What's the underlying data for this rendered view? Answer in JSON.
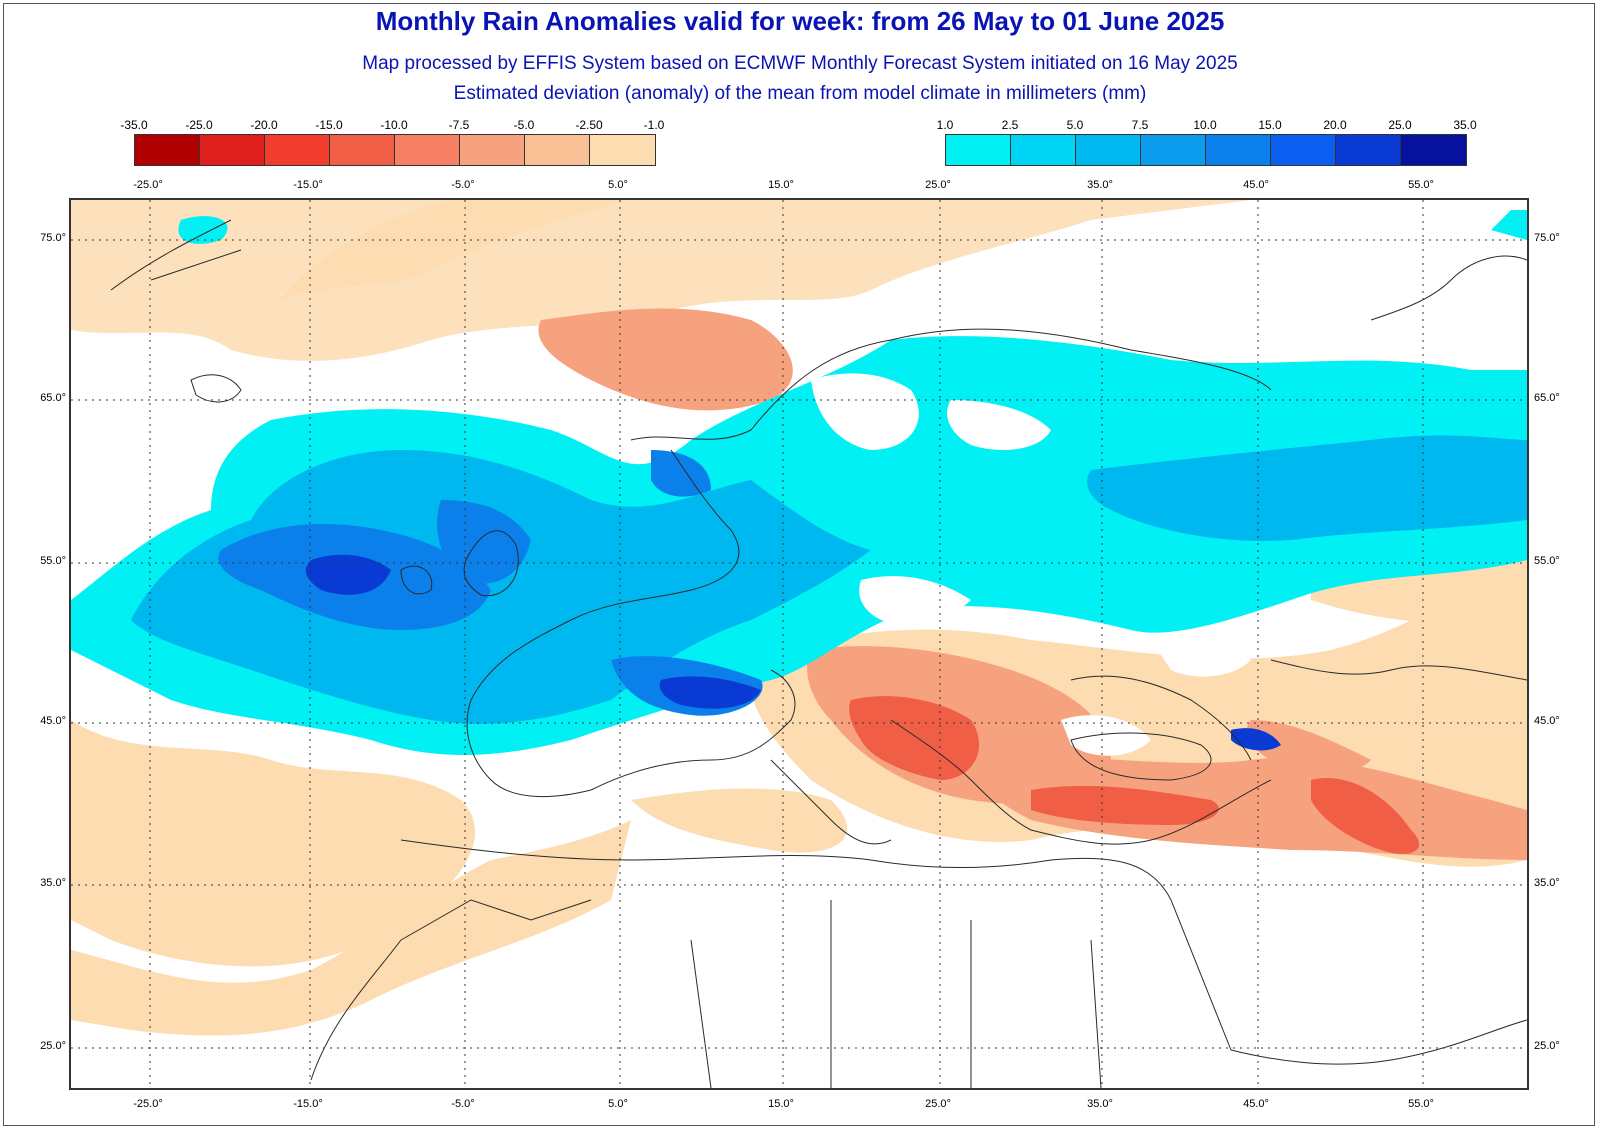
{
  "header": {
    "title": "Monthly Rain Anomalies valid for week: from 26 May to 01 June 2025",
    "subtitle1": "Map processed by EFFIS System based on ECMWF Monthly Forecast System initiated on 16 May 2025",
    "subtitle2": "Estimated deviation (anomaly) of the mean from model climate in millimeters (mm)"
  },
  "legend_negative": {
    "labels": [
      "-35.0",
      "-25.0",
      "-20.0",
      "-15.0",
      "-10.0",
      "-7.5",
      "-5.0",
      "-2.50",
      "-1.0"
    ],
    "colors": [
      "#b00000",
      "#de1f1c",
      "#f23c2d",
      "#f05e46",
      "#f58063",
      "#f7a27e",
      "#f9bf95",
      "#fcdcb0"
    ]
  },
  "legend_positive": {
    "labels": [
      "1.0",
      "2.5",
      "5.0",
      "7.5",
      "10.0",
      "15.0",
      "20.0",
      "25.0",
      "35.0"
    ],
    "colors": [
      "#00f0f4",
      "#00d4f4",
      "#00b8f0",
      "#0b9cee",
      "#0b80ea",
      "#0a5ef0",
      "#0a3ad4",
      "#06129e"
    ]
  },
  "axes": {
    "x_labels": [
      "-25.0°",
      "-15.0°",
      "-5.0°",
      "5.0°",
      "15.0°",
      "25.0°",
      "35.0°",
      "45.0°",
      "55.0°"
    ],
    "y_labels": [
      "75.0°",
      "65.0°",
      "55.0°",
      "45.0°",
      "35.0°",
      "25.0°"
    ]
  },
  "map": {
    "region": "Europe, North Africa, Middle East",
    "colors": {
      "land_outline": "#2a2a2a",
      "background": "#ffffff",
      "dry_light": "#fcdcb0",
      "dry_mid": "#f7a27e",
      "dry_strong": "#f05e46",
      "wet_light": "#00f0f4",
      "wet_mid": "#00b8f0",
      "wet_strong": "#0b80ea",
      "wet_very": "#0a3ad4",
      "wet_extreme": "#06129e"
    }
  }
}
